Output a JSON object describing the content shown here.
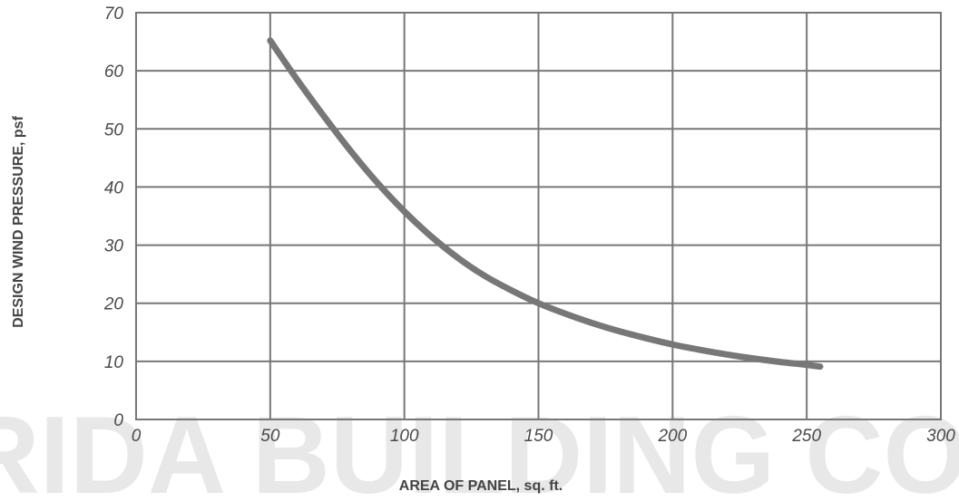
{
  "chart_data": {
    "type": "line",
    "title": "",
    "xlabel": "AREA OF PANEL, sq. ft.",
    "ylabel": "DESIGN WIND PRESSURE, psf",
    "xlim": [
      0,
      300
    ],
    "ylim": [
      0,
      70
    ],
    "x_ticks": [
      "0",
      "50",
      "100",
      "150",
      "200",
      "250",
      "300"
    ],
    "y_ticks": [
      "0",
      "10",
      "20",
      "30",
      "40",
      "50",
      "60",
      "70"
    ],
    "grid": true,
    "legend": false,
    "series": [
      {
        "x": [
          50,
          60,
          70,
          80,
          90,
          100,
          110,
          120,
          130,
          140,
          150,
          160,
          170,
          180,
          190,
          200,
          210,
          220,
          230,
          240,
          250,
          255
        ],
        "values": [
          65.2,
          58.5,
          52.2,
          46.2,
          40.7,
          35.8,
          31.5,
          27.8,
          24.7,
          22.2,
          20.0,
          18.2,
          16.6,
          15.2,
          14.0,
          12.9,
          12.0,
          11.2,
          10.5,
          9.9,
          9.4,
          9.1
        ]
      }
    ],
    "colors": {
      "line": "#777777",
      "grid": "#777777",
      "watermark": "#d7d7d7",
      "ticks": "#4a4a4a",
      "axis_titles": "#444444"
    }
  },
  "watermark": {
    "text": "RIDA BUILDING COD"
  }
}
